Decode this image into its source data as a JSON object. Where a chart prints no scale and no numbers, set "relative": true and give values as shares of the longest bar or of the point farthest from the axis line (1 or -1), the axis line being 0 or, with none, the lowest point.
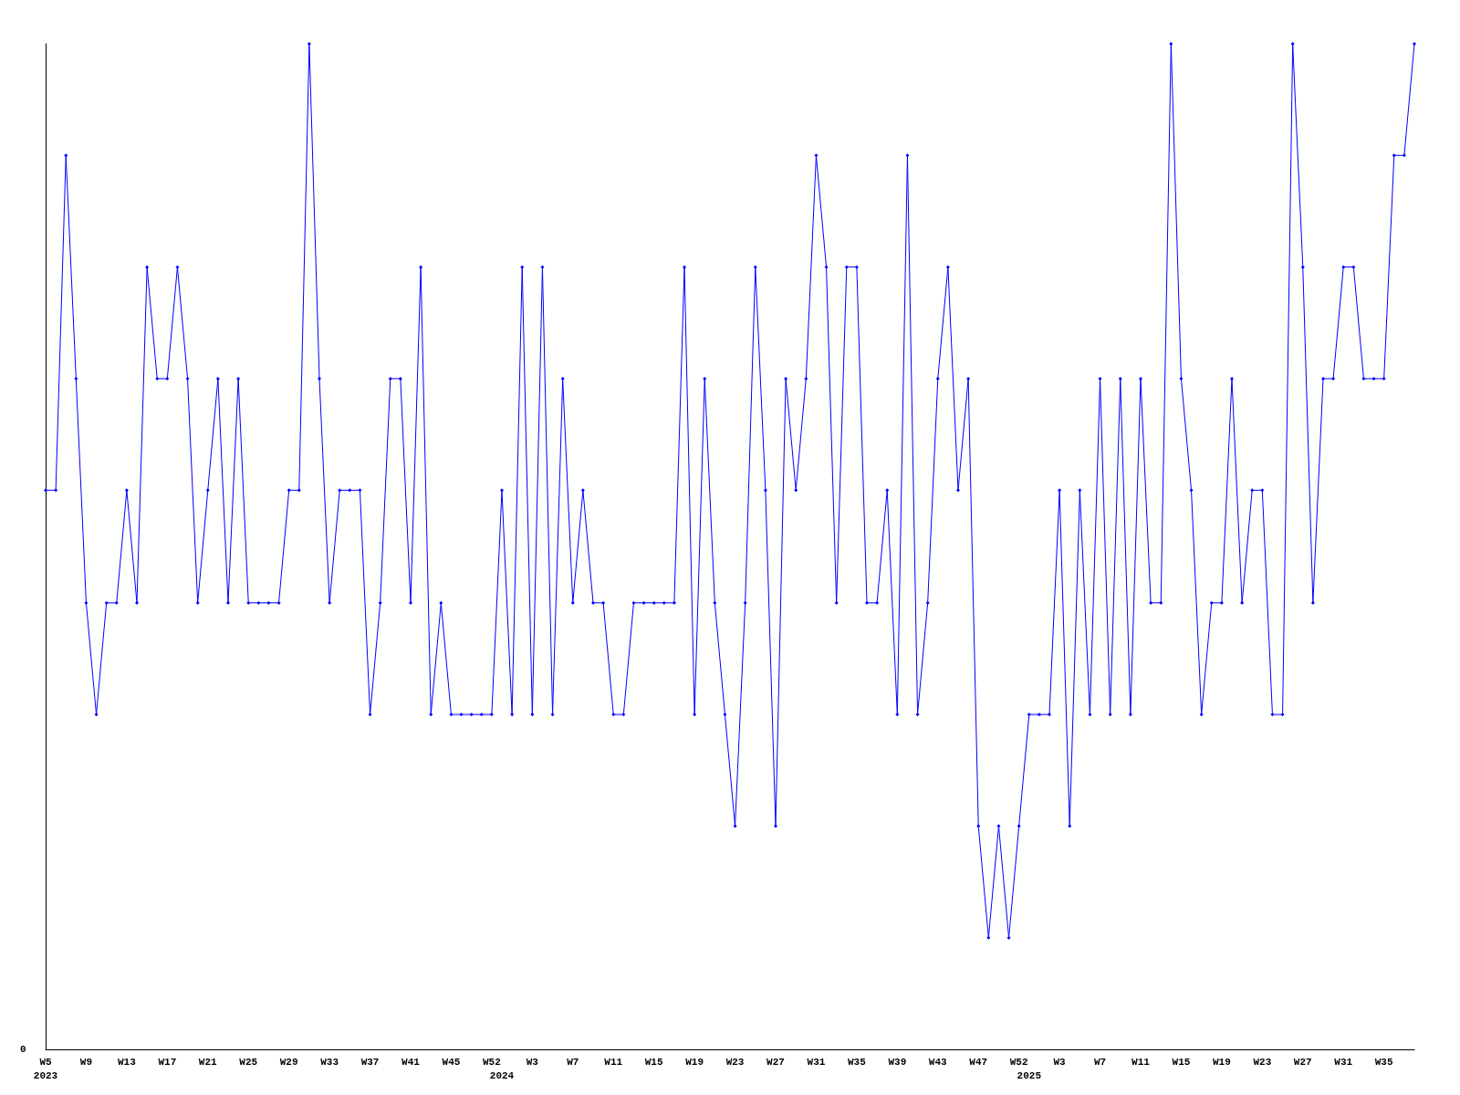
{
  "chart_data": {
    "type": "line",
    "relative": true,
    "annotations": [
      "0"
    ],
    "marker": "diamond",
    "grid": false,
    "categories": [
      "W5\n2023",
      null,
      null,
      null,
      "W9",
      null,
      null,
      null,
      "W13",
      null,
      null,
      null,
      "W17",
      null,
      null,
      null,
      "W21",
      null,
      null,
      null,
      "W25",
      null,
      null,
      null,
      "W29",
      null,
      null,
      null,
      "W33",
      null,
      null,
      null,
      "W37",
      null,
      null,
      null,
      "W41",
      null,
      null,
      null,
      "W45",
      null,
      null,
      null,
      "W52",
      "\n2024",
      null,
      null,
      "W3",
      null,
      null,
      null,
      "W7",
      null,
      null,
      null,
      "W11",
      null,
      null,
      null,
      "W15",
      null,
      null,
      null,
      "W19",
      null,
      null,
      null,
      "W23",
      null,
      null,
      null,
      "W27",
      null,
      null,
      null,
      "W31",
      null,
      null,
      null,
      "W35",
      null,
      null,
      null,
      "W39",
      null,
      null,
      null,
      "W43",
      null,
      null,
      null,
      "W47",
      null,
      null,
      null,
      "W52",
      "\n2025",
      null,
      null,
      "W3",
      null,
      null,
      null,
      "W7",
      null,
      null,
      null,
      "W11",
      null,
      null,
      null,
      "W15",
      null,
      null,
      null,
      "W19",
      null,
      null,
      null,
      "W23",
      null,
      null,
      null,
      "W27",
      null,
      null,
      null,
      "W31",
      null,
      null,
      null,
      "W35",
      null,
      null,
      null
    ],
    "series": [
      {
        "color": "#0000ff",
        "values": [
          0.556,
          0.556,
          0.889,
          0.667,
          0.444,
          0.333,
          0.444,
          0.444,
          0.556,
          0.444,
          0.778,
          0.667,
          0.667,
          0.778,
          0.667,
          0.444,
          0.556,
          0.667,
          0.444,
          0.667,
          0.444,
          0.444,
          0.444,
          0.444,
          0.556,
          0.556,
          1,
          0.667,
          0.444,
          0.556,
          0.556,
          0.556,
          0.333,
          0.444,
          0.667,
          0.667,
          0.444,
          0.778,
          0.333,
          0.444,
          0.333,
          0.333,
          0.333,
          0.333,
          0.333,
          0.556,
          0.333,
          0.778,
          0.333,
          0.778,
          0.333,
          0.667,
          0.444,
          0.556,
          0.444,
          0.444,
          0.333,
          0.333,
          0.444,
          0.444,
          0.444,
          0.444,
          0.444,
          0.778,
          0.333,
          0.667,
          0.444,
          0.333,
          0.222,
          0.444,
          0.778,
          0.556,
          0.222,
          0.667,
          0.556,
          0.667,
          0.889,
          0.778,
          0.444,
          0.778,
          0.778,
          0.444,
          0.444,
          0.556,
          0.333,
          0.889,
          0.333,
          0.444,
          0.667,
          0.778,
          0.556,
          0.667,
          0.222,
          0.111,
          0.222,
          0.111,
          0.222,
          0.333,
          0.333,
          0.333,
          0.556,
          0.222,
          0.556,
          0.333,
          0.667,
          0.333,
          0.667,
          0.333,
          0.667,
          0.444,
          0.444,
          1,
          0.667,
          0.556,
          0.333,
          0.444,
          0.444,
          0.667,
          0.444,
          0.556,
          0.556,
          0.333,
          0.333,
          1,
          0.778,
          0.444,
          0.667,
          0.667,
          0.778,
          0.778,
          0.667,
          0.667,
          0.667,
          0.889,
          0.889,
          1
        ]
      }
    ]
  }
}
